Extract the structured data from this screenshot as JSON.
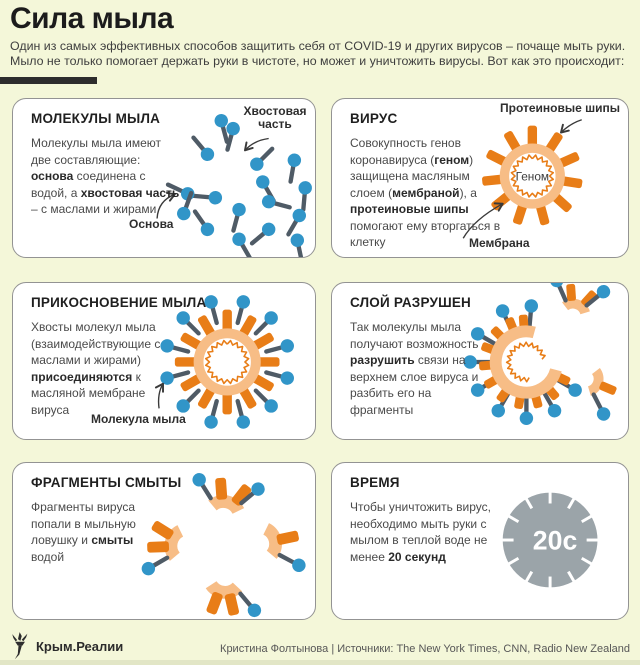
{
  "page": {
    "title": "Сила мыла",
    "intro_line1": "Один из самых эффективных способов защитить себя от COVID-19 и других вирусов – почаще мыть руки.",
    "intro_line2": "Мыло не только помогает держать руки в чистоте, но может и уничтожить вирусы. Вот как это происходит:"
  },
  "colors": {
    "background": "#f4f7d9",
    "card_border": "#939393",
    "spike_orange": "#e87d17",
    "membrane_orange": "#f7bd86",
    "soap_blue": "#3195c8",
    "tail_gray": "#4f5b66",
    "clock_gray": "#9ba4a9",
    "divider_dark": "#2d2d2d"
  },
  "panels": {
    "soap_molecules": {
      "title": "МОЛЕКУЛЫ МЫЛА",
      "body": [
        {
          "t": "Молекулы мыла имеют две составляющие: "
        },
        {
          "t": "основа",
          "b": true
        },
        {
          "t": " соединена с водой, а "
        },
        {
          "t": "хвостовая часть",
          "b": true
        },
        {
          "t": " – с маслами и жирами"
        }
      ],
      "label_tail_line1": "Хвостовая",
      "label_tail_line2": "часть",
      "label_head": "Основа"
    },
    "virus": {
      "title": "ВИРУС",
      "body": [
        {
          "t": "Совокупность генов коронавируса ("
        },
        {
          "t": "геном",
          "b": true
        },
        {
          "t": ") защищена масляным слоем ("
        },
        {
          "t": "мембраной",
          "b": true
        },
        {
          "t": "), а "
        },
        {
          "t": "протеиновые шипы",
          "b": true
        },
        {
          "t": " помогают ему вторгаться в клетку"
        }
      ],
      "label_spikes": "Протеиновые шипы",
      "label_genome": "Геном",
      "label_membrane": "Мембрана"
    },
    "soap_touch": {
      "title": "ПРИКОСНОВЕНИЕ МЫЛА",
      "body": [
        {
          "t": "Хвосты молекул мыла (взаимодействующие с маслами и жирами) "
        },
        {
          "t": "присоединяются",
          "b": true
        },
        {
          "t": " к масляной мембране вируса"
        }
      ],
      "label_molecule": "Молекула мыла"
    },
    "layer_destroyed": {
      "title": "СЛОЙ РАЗРУШЕН",
      "body": [
        {
          "t": "Так молекулы мыла получают возможность "
        },
        {
          "t": "разрушить",
          "b": true
        },
        {
          "t": " связи на верхнем слое вируса и разбить его на фрагменты"
        }
      ]
    },
    "fragments_washed": {
      "title": "ФРАГМЕНТЫ СМЫТЫ",
      "body": [
        {
          "t": "Фрагменты вируса попали в мыльную ловушку и "
        },
        {
          "t": "смыты",
          "b": true
        },
        {
          "t": " водой"
        }
      ]
    },
    "time": {
      "title": "ВРЕМЯ",
      "body": [
        {
          "t": "Чтобы уничтожить вирус, необходимо мыть руки с мылом в теплой воде не менее "
        },
        {
          "t": "20 секунд",
          "b": true
        }
      ],
      "clock_label": "20с"
    }
  },
  "icons": {
    "torch_logo": "torch-icon",
    "soap_molecule": "circle-with-tail",
    "clock": "timer-circle-with-ticks"
  },
  "footer": {
    "logo_text": "Крым.Реалии",
    "credit": "Кристина Фолтынова | Источники: The New York Times, CNN, Radio New Zealand"
  }
}
